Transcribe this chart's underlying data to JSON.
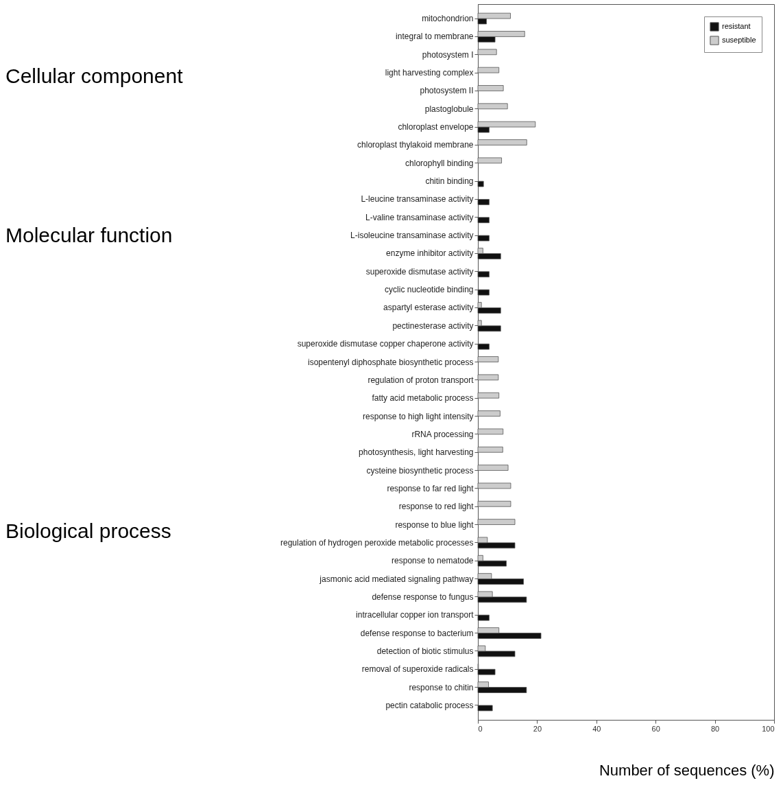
{
  "chart_data": {
    "type": "bar",
    "orientation": "horizontal",
    "xlabel": "Number of sequences (%)",
    "categories": [
      "mitochondrion",
      "integral to membrane",
      "photosystem I",
      "light harvesting complex",
      "photosystem II",
      "plastoglobule",
      "chloroplast envelope",
      "chloroplast thylakoid membrane",
      "chlorophyll binding",
      "chitin binding",
      "L-leucine transaminase activity",
      "L-valine transaminase activity",
      "L-isoleucine transaminase activity",
      "enzyme inhibitor activity",
      "superoxide dismutase activity",
      "cyclic nucleotide binding",
      "aspartyl esterase activity",
      "pectinesterase activity",
      "superoxide dismutase copper chaperone activity",
      "isopentenyl diphosphate biosynthetic process",
      "regulation of proton transport",
      "fatty acid metabolic process",
      "response to high light intensity",
      "rRNA processing",
      "photosynthesis, light harvesting",
      "cysteine biosynthetic process",
      "response to far red light",
      "response to red light",
      "response to blue light",
      "regulation of hydrogen peroxide metabolic processes",
      "response to nematode",
      "jasmonic acid mediated signaling pathway",
      "defense response to fungus",
      "intracellular copper ion transport",
      "defense response to bacterium",
      "detection of biotic stimulus",
      "removal of superoxide radicals",
      "response to chitin",
      "pectin catabolic process"
    ],
    "series": [
      {
        "name": "resistant",
        "color": "#111111",
        "values": [
          2.9,
          5.8,
          null,
          null,
          null,
          null,
          3.8,
          null,
          null,
          1.9,
          3.8,
          3.8,
          3.8,
          7.7,
          3.8,
          3.8,
          7.7,
          7.7,
          3.8,
          null,
          null,
          null,
          null,
          null,
          null,
          null,
          null,
          null,
          null,
          12.5,
          9.6,
          15.4,
          16.4,
          3.8,
          21.3,
          12.5,
          5.8,
          16.4,
          4.9
        ]
      },
      {
        "name": "suseptible",
        "color": "#cccccc",
        "values": [
          11.0,
          15.8,
          6.3,
          7.1,
          8.6,
          10.0,
          19.4,
          16.5,
          8.0,
          null,
          null,
          null,
          null,
          1.7,
          null,
          null,
          1.2,
          1.2,
          null,
          6.9,
          6.9,
          7.1,
          7.5,
          8.5,
          8.4,
          10.2,
          11.1,
          11.1,
          12.5,
          3.2,
          1.7,
          4.6,
          4.9,
          null,
          7.1,
          2.5,
          0.2,
          3.6,
          null
        ]
      }
    ],
    "xlim": [
      0,
      100
    ],
    "xticks": [
      0,
      20,
      40,
      60,
      80,
      100
    ],
    "grid": false,
    "legend": "top right",
    "annotations": [
      "Cellular component",
      "Molecular function",
      "Biological process"
    ]
  }
}
